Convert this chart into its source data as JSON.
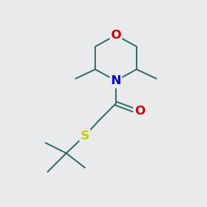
{
  "background_color": "#e8eaeb",
  "bond_color": "#2d6b6b",
  "O_color": "#cc0000",
  "N_color": "#0000cc",
  "S_color": "#cccc00",
  "label_O": "O",
  "label_N": "N",
  "label_S": "S",
  "font_size_heteroatom": 13,
  "fig_width": 3.0,
  "fig_height": 3.0,
  "dpi": 100
}
